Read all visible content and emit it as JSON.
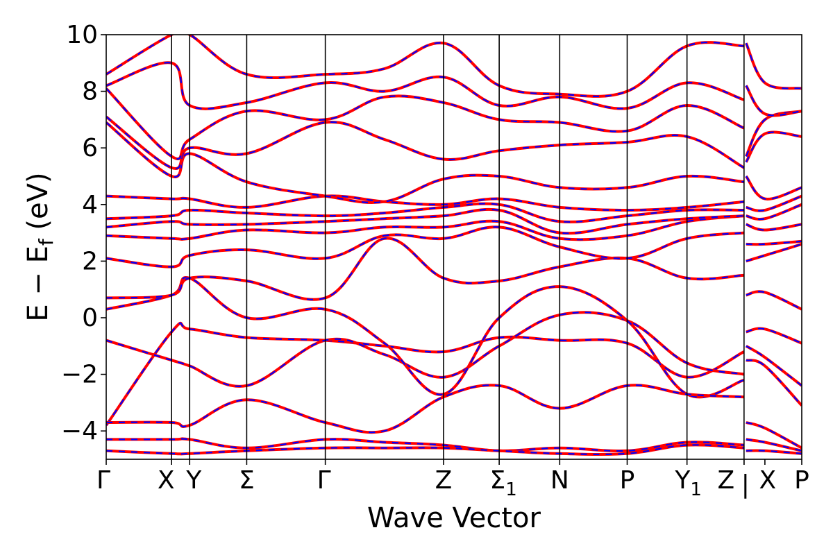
{
  "chart_data": {
    "type": "line",
    "xlabel": "Wave Vector",
    "ylabel": "E − E",
    "ylabel_sub": "f",
    "ylabel_unit": "(eV)",
    "ylim": [
      -5,
      10
    ],
    "yticks": [
      {
        "value": -4,
        "label": "−4"
      },
      {
        "value": -2,
        "label": "−2"
      },
      {
        "value": 0,
        "label": "0"
      },
      {
        "value": 2,
        "label": "2"
      },
      {
        "value": 4,
        "label": "4"
      },
      {
        "value": 6,
        "label": "6"
      },
      {
        "value": 8,
        "label": "8"
      },
      {
        "value": 10,
        "label": "10"
      }
    ],
    "xlim": [
      0,
      1
    ],
    "kpoints": [
      {
        "x": 0.0,
        "label": "Γ",
        "sub": ""
      },
      {
        "x": 0.094,
        "label": "X",
        "sub": ""
      },
      {
        "x": 0.12,
        "label": "Y",
        "sub": ""
      },
      {
        "x": 0.202,
        "label": "Σ",
        "sub": ""
      },
      {
        "x": 0.315,
        "label": "Γ",
        "sub": ""
      },
      {
        "x": 0.485,
        "label": "Z",
        "sub": ""
      },
      {
        "x": 0.565,
        "label": "Σ",
        "sub": "1"
      },
      {
        "x": 0.652,
        "label": "N",
        "sub": ""
      },
      {
        "x": 0.749,
        "label": "P",
        "sub": ""
      },
      {
        "x": 0.835,
        "label": "Y",
        "sub": "1"
      },
      {
        "x": 0.917,
        "label": "Z",
        "sub": ""
      },
      {
        "x": 0.917,
        "label": "|",
        "sub": ""
      },
      {
        "x": 0.947,
        "label": "X",
        "sub": ""
      },
      {
        "x": 1.0,
        "label": "P",
        "sub": ""
      }
    ],
    "vlines": [
      0.094,
      0.12,
      0.202,
      0.315,
      0.485,
      0.565,
      0.652,
      0.749,
      0.835,
      0.917
    ],
    "segment_break": 0.917,
    "series_styles": [
      {
        "color": "#ff0000",
        "dash": "none",
        "width": 4
      },
      {
        "color": "#0000ff",
        "dash": "9 9",
        "width": 2.2
      }
    ],
    "bands": [
      {
        "x": [
          0,
          0.094,
          0.12,
          0.202,
          0.315,
          0.4,
          0.485,
          0.565,
          0.652,
          0.749,
          0.835,
          0.917,
          0.92,
          0.947,
          1.0
        ],
        "y": [
          -3.8,
          -0.5,
          -0.4,
          -0.7,
          -0.8,
          -1.0,
          -1.2,
          -0.7,
          -0.8,
          -0.9,
          -2.1,
          -1.2,
          -0.5,
          -0.4,
          -0.9
        ]
      },
      {
        "x": [
          0,
          0.094,
          0.12,
          0.202,
          0.315,
          0.4,
          0.485,
          0.565,
          0.652,
          0.749,
          0.835,
          0.917,
          0.92,
          0.947,
          1.0
        ],
        "y": [
          -0.8,
          -1.5,
          -1.7,
          -2.4,
          -0.8,
          -1.3,
          -2.1,
          -1.0,
          0.1,
          -0.1,
          -1.6,
          -2.0,
          -1.0,
          -1.4,
          -2.4
        ]
      },
      {
        "x": [
          0,
          0.094,
          0.12,
          0.202,
          0.315,
          0.4,
          0.485,
          0.565,
          0.652,
          0.749,
          0.835,
          0.917,
          0.92,
          0.947,
          1.0
        ],
        "y": [
          0.3,
          0.8,
          1.4,
          0.0,
          0.3,
          -0.9,
          -2.7,
          0.0,
          1.1,
          -0.1,
          -2.7,
          -2.2,
          -1.5,
          -1.7,
          -3.1
        ]
      },
      {
        "x": [
          0,
          0.094,
          0.12,
          0.202,
          0.315,
          0.4,
          0.485,
          0.565,
          0.652,
          0.749,
          0.835,
          0.917,
          0.92,
          0.947,
          1.0
        ],
        "y": [
          0.7,
          0.8,
          1.4,
          1.3,
          0.7,
          2.8,
          1.4,
          1.3,
          1.8,
          2.1,
          1.4,
          1.5,
          0.8,
          0.9,
          0.3
        ]
      },
      {
        "x": [
          0,
          0.094,
          0.12,
          0.202,
          0.315,
          0.4,
          0.485,
          0.565,
          0.652,
          0.749,
          0.835,
          0.917,
          0.92,
          0.947,
          1.0
        ],
        "y": [
          2.1,
          1.8,
          2.2,
          2.4,
          2.1,
          2.9,
          2.8,
          3.2,
          2.5,
          2.1,
          2.8,
          3.0,
          2.0,
          2.2,
          2.6
        ]
      },
      {
        "x": [
          0,
          0.094,
          0.12,
          0.202,
          0.315,
          0.4,
          0.485,
          0.565,
          0.652,
          0.749,
          0.835,
          0.917,
          0.92,
          0.947,
          1.0
        ],
        "y": [
          2.9,
          2.8,
          2.8,
          3.1,
          3.0,
          3.2,
          3.2,
          3.4,
          2.8,
          2.9,
          3.4,
          3.6,
          2.6,
          2.6,
          2.7
        ]
      },
      {
        "x": [
          0,
          0.094,
          0.12,
          0.202,
          0.315,
          0.4,
          0.485,
          0.565,
          0.652,
          0.749,
          0.835,
          0.917,
          0.92,
          0.947,
          1.0
        ],
        "y": [
          3.2,
          3.4,
          3.3,
          3.3,
          3.4,
          3.5,
          3.6,
          3.8,
          3.0,
          3.3,
          3.5,
          3.6,
          3.3,
          3.1,
          3.3
        ]
      },
      {
        "x": [
          0,
          0.094,
          0.12,
          0.202,
          0.315,
          0.4,
          0.485,
          0.565,
          0.652,
          0.749,
          0.835,
          0.917,
          0.92,
          0.947,
          1.0
        ],
        "y": [
          3.5,
          3.6,
          3.8,
          3.7,
          3.6,
          3.7,
          3.9,
          4.0,
          3.4,
          3.6,
          3.8,
          3.8,
          3.6,
          3.5,
          4.0
        ]
      },
      {
        "x": [
          0,
          0.094,
          0.12,
          0.202,
          0.315,
          0.4,
          0.485,
          0.565,
          0.652,
          0.749,
          0.835,
          0.917,
          0.92,
          0.947,
          1.0
        ],
        "y": [
          4.3,
          4.2,
          4.2,
          3.9,
          4.3,
          4.1,
          4.0,
          4.2,
          3.9,
          3.8,
          3.9,
          4.1,
          3.9,
          3.8,
          4.3
        ]
      },
      {
        "x": [
          0,
          0.094,
          0.12,
          0.202,
          0.315,
          0.4,
          0.485,
          0.565,
          0.652,
          0.749,
          0.835,
          0.917,
          0.92,
          0.947,
          1.0
        ],
        "y": [
          6.9,
          5.0,
          5.8,
          4.8,
          4.3,
          4.1,
          4.9,
          5.0,
          4.6,
          4.6,
          5.0,
          4.8,
          5.0,
          4.2,
          4.6
        ]
      },
      {
        "x": [
          0,
          0.094,
          0.12,
          0.202,
          0.315,
          0.4,
          0.485,
          0.565,
          0.652,
          0.749,
          0.835,
          0.917,
          0.92,
          0.947,
          1.0
        ],
        "y": [
          7.1,
          5.3,
          6.0,
          5.8,
          6.9,
          6.3,
          5.6,
          5.9,
          6.1,
          6.2,
          6.4,
          5.3,
          5.5,
          6.5,
          6.4
        ]
      },
      {
        "x": [
          0,
          0.094,
          0.12,
          0.202,
          0.315,
          0.4,
          0.485,
          0.565,
          0.652,
          0.749,
          0.835,
          0.917,
          0.92,
          0.947,
          1.0
        ],
        "y": [
          8.1,
          5.7,
          6.3,
          7.3,
          7.0,
          7.8,
          7.6,
          7.0,
          6.9,
          6.6,
          7.5,
          6.7,
          5.7,
          7.0,
          7.3
        ]
      },
      {
        "x": [
          0,
          0.094,
          0.12,
          0.202,
          0.315,
          0.4,
          0.485,
          0.565,
          0.652,
          0.749,
          0.835,
          0.917,
          0.92,
          0.947,
          1.0
        ],
        "y": [
          8.2,
          9.0,
          7.5,
          7.6,
          8.3,
          8.0,
          8.5,
          7.5,
          7.8,
          7.4,
          8.3,
          7.7,
          8.2,
          7.2,
          7.3
        ]
      },
      {
        "x": [
          0,
          0.094,
          0.12,
          0.202,
          0.315,
          0.4,
          0.485,
          0.565,
          0.652,
          0.749,
          0.835,
          0.917,
          0.92,
          0.947,
          1.0
        ],
        "y": [
          8.6,
          10.0,
          10.0,
          8.6,
          8.6,
          8.8,
          9.7,
          8.2,
          7.9,
          8.0,
          9.6,
          9.6,
          9.7,
          8.3,
          8.1
        ]
      },
      {
        "x": [
          0,
          0.094,
          0.12,
          0.202,
          0.315,
          0.4,
          0.485,
          0.565,
          0.652,
          0.749,
          0.835,
          0.917,
          0.92,
          0.947,
          1.0
        ],
        "y": [
          -3.7,
          -3.7,
          -3.8,
          -2.9,
          -3.7,
          -4.0,
          -2.8,
          -2.4,
          -3.2,
          -2.4,
          -2.7,
          -2.8,
          -3.7,
          -3.9,
          -4.6
        ]
      },
      {
        "x": [
          0,
          0.094,
          0.12,
          0.202,
          0.315,
          0.4,
          0.485,
          0.565,
          0.652,
          0.749,
          0.835,
          0.917,
          0.92,
          0.947,
          1.0
        ],
        "y": [
          -4.3,
          -4.3,
          -4.3,
          -4.6,
          -4.3,
          -4.4,
          -4.5,
          -4.7,
          -4.6,
          -4.7,
          -4.4,
          -4.5,
          -4.3,
          -4.4,
          -4.7
        ]
      },
      {
        "x": [
          0,
          0.094,
          0.12,
          0.202,
          0.315,
          0.4,
          0.485,
          0.565,
          0.652,
          0.749,
          0.835,
          0.917,
          0.92,
          0.947,
          1.0
        ],
        "y": [
          -4.7,
          -4.8,
          -4.8,
          -4.7,
          -4.6,
          -4.6,
          -4.6,
          -4.7,
          -4.8,
          -4.8,
          -4.5,
          -4.6,
          -4.7,
          -4.7,
          -4.8
        ]
      }
    ]
  }
}
